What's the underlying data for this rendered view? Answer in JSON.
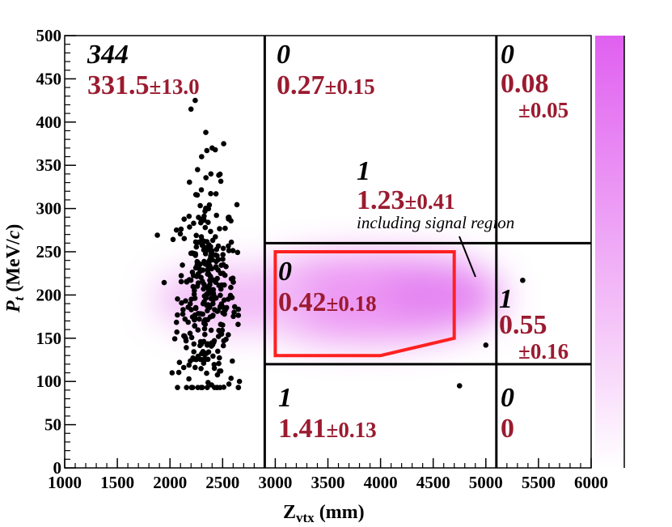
{
  "chart_data": {
    "type": "scatter",
    "xlabel": "Z",
    "xlabel_sub": "vtx",
    "xlabel_unit": " (mm)",
    "ylabel": "P",
    "ylabel_sub": "t",
    "ylabel_unit_pre": " (MeV/",
    "ylabel_unit_c": "c",
    "ylabel_unit_post": ")",
    "xlim": [
      1000,
      6000
    ],
    "ylim": [
      0,
      500
    ],
    "xticks": [
      1000,
      1500,
      2000,
      2500,
      3000,
      3500,
      4000,
      4500,
      5000,
      5500,
      6000
    ],
    "yticks": [
      0,
      50,
      100,
      150,
      200,
      250,
      300,
      350,
      400,
      450,
      500
    ],
    "grid": false,
    "colors": {
      "markers": "#000000",
      "expected_text": "#9b1b30",
      "signal_box": "#ff2020",
      "density": "#e060f0"
    },
    "region_lines": {
      "vertical": [
        2900,
        5100
      ],
      "horizontal": [
        120,
        260
      ]
    },
    "signal_region": [
      [
        3000,
        250
      ],
      [
        4700,
        250
      ],
      [
        4700,
        150
      ],
      [
        4000,
        130
      ],
      [
        3000,
        130
      ]
    ],
    "regions": [
      {
        "id": "top-left",
        "observed": "344",
        "expected": "331.5",
        "error": "±13.0"
      },
      {
        "id": "top-middle",
        "observed": "0",
        "expected": "0.27",
        "error": "±0.15"
      },
      {
        "id": "top-right",
        "observed": "0",
        "expected": "0.08",
        "error": "±0.05"
      },
      {
        "id": "center",
        "observed": "1",
        "expected": "1.23",
        "error": "±0.41",
        "note": "including signal region"
      },
      {
        "id": "signal",
        "observed": "0",
        "expected": "0.42",
        "error": "±0.18"
      },
      {
        "id": "middle-right",
        "observed": "1",
        "expected": "0.55",
        "error": "±0.16"
      },
      {
        "id": "bottom-middle",
        "observed": "1",
        "expected": "1.41",
        "error": "±0.13"
      },
      {
        "id": "bottom-right",
        "observed": "0",
        "expected": "0",
        "error": ""
      }
    ],
    "outlier_points": [
      [
        4750,
        95
      ],
      [
        5000,
        142
      ],
      [
        5350,
        217
      ]
    ],
    "main_cluster": {
      "count": 344,
      "x_center": 2350,
      "x_spread": 140,
      "y_center": 200,
      "y_spread": 60,
      "x_range": [
        1880,
        2650
      ],
      "y_range": [
        93,
        425
      ],
      "listed_points": [
        [
          2200,
          415
        ],
        [
          2240,
          425
        ],
        [
          2340,
          388
        ],
        [
          2350,
          367
        ],
        [
          2430,
          368
        ],
        [
          2510,
          375
        ],
        [
          2400,
          370
        ],
        [
          2300,
          360
        ],
        [
          2180,
          103
        ],
        [
          2020,
          110
        ],
        [
          2560,
          97
        ],
        [
          2660,
          100
        ],
        [
          2090,
          122
        ],
        [
          2470,
          112
        ]
      ]
    }
  }
}
